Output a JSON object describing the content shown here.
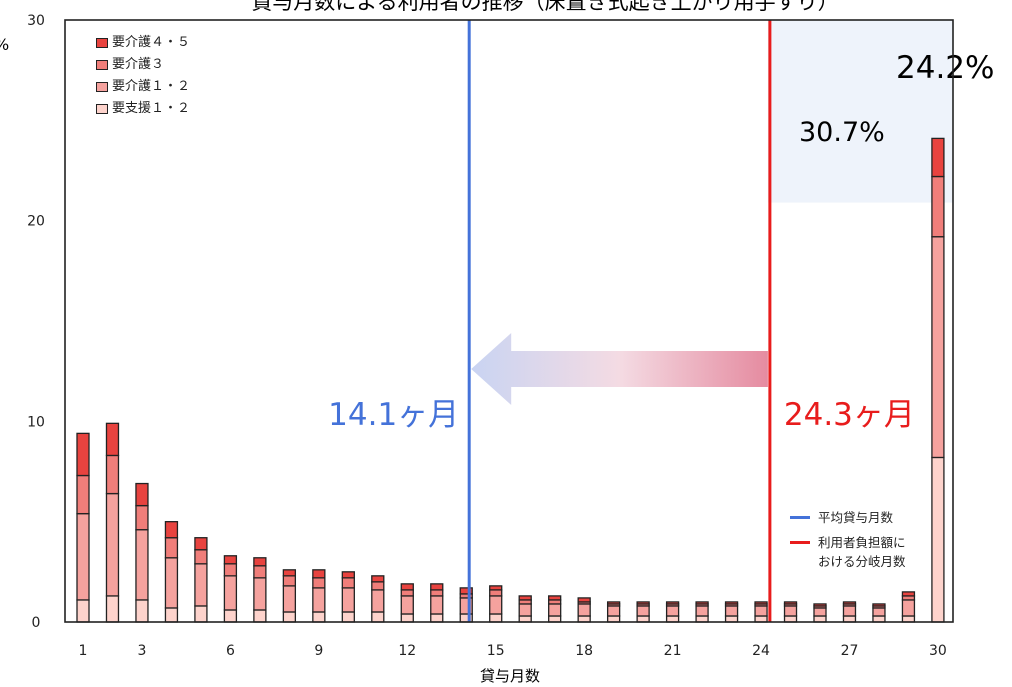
{
  "chart_data": {
    "type": "bar",
    "stacked": true,
    "title": "貸与月数による利用者の推移（床置き式起き上がり用手すり）",
    "xlabel": "貸与月数",
    "ylabel": "%",
    "ylim": [
      0,
      30
    ],
    "yticks": [
      "0",
      "10",
      "20",
      "30"
    ],
    "xticks": [
      "1",
      "3",
      "6",
      "9",
      "12",
      "15",
      "18",
      "21",
      "24",
      "27",
      "30"
    ],
    "x": [
      1,
      2,
      3,
      4,
      5,
      6,
      7,
      8,
      9,
      10,
      11,
      12,
      13,
      14,
      15,
      16,
      17,
      18,
      19,
      20,
      21,
      22,
      23,
      24,
      25,
      26,
      27,
      28,
      29,
      30
    ],
    "series": [
      {
        "name": "要支援１・２",
        "color": "#fdd3cc",
        "values": [
          1.1,
          1.3,
          1.1,
          0.7,
          0.8,
          0.6,
          0.6,
          0.5,
          0.5,
          0.5,
          0.5,
          0.4,
          0.4,
          0.4,
          0.4,
          0.3,
          0.3,
          0.3,
          0.3,
          0.3,
          0.3,
          0.3,
          0.3,
          0.3,
          0.3,
          0.3,
          0.3,
          0.3,
          0.3,
          8.2
        ]
      },
      {
        "name": "要介護１・２",
        "color": "#f5a29e",
        "values": [
          4.3,
          5.1,
          3.5,
          2.5,
          2.1,
          1.7,
          1.6,
          1.3,
          1.2,
          1.2,
          1.1,
          0.9,
          0.9,
          0.8,
          0.9,
          0.6,
          0.6,
          0.6,
          0.5,
          0.5,
          0.5,
          0.5,
          0.5,
          0.5,
          0.5,
          0.4,
          0.5,
          0.4,
          0.8,
          11.0
        ]
      },
      {
        "name": "要介護３",
        "color": "#f07e7a",
        "values": [
          1.9,
          1.9,
          1.2,
          1.0,
          0.7,
          0.6,
          0.6,
          0.5,
          0.5,
          0.5,
          0.4,
          0.3,
          0.3,
          0.2,
          0.3,
          0.2,
          0.2,
          0.1,
          0.1,
          0.1,
          0.1,
          0.1,
          0.1,
          0.1,
          0.1,
          0.1,
          0.1,
          0.1,
          0.2,
          3.0
        ]
      },
      {
        "name": "要介護４・５",
        "color": "#e8433f",
        "values": [
          2.1,
          1.6,
          1.1,
          0.8,
          0.6,
          0.4,
          0.4,
          0.3,
          0.4,
          0.3,
          0.3,
          0.3,
          0.3,
          0.3,
          0.2,
          0.2,
          0.2,
          0.2,
          0.1,
          0.1,
          0.1,
          0.1,
          0.1,
          0.1,
          0.1,
          0.1,
          0.1,
          0.1,
          0.2,
          1.9
        ]
      }
    ],
    "vlines": [
      {
        "label": "14.1ヶ月",
        "x": 14.1,
        "color": "#4472d9"
      },
      {
        "label": "24.3ヶ月",
        "x": 24.3,
        "color": "#e81c1c"
      }
    ],
    "shaded_region": {
      "x_from": 24.3,
      "y_from": 20.9,
      "color": "#eef3fb"
    },
    "annotations": [
      "24.2%",
      "30.7%"
    ],
    "legend_series_order": [
      "要介護４・５",
      "要介護３",
      "要介護１・２",
      "要支援１・２"
    ],
    "legend_lines": [
      {
        "text": "平均貸与月数",
        "color": "#4472d9"
      },
      {
        "text": "利用者負担額に\nおける分岐月数",
        "color": "#e81c1c"
      }
    ],
    "grid": false,
    "legend_position": "top-left"
  }
}
